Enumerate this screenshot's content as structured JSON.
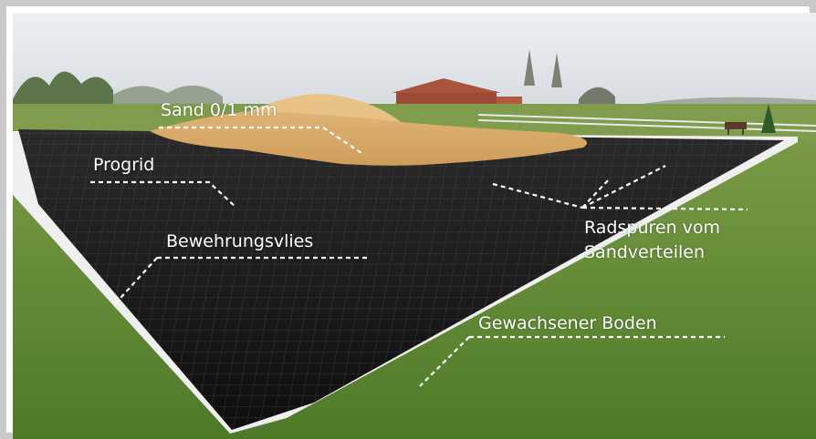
{
  "labels": {
    "sand": "Sand  0/1 mm",
    "progrid": "Progrid",
    "vlies": "Bewehrungsvlies",
    "radspuren_line1": "Radspuren vom",
    "radspuren_line2": "Sandverteilen",
    "boden": "Gewachsener Boden"
  },
  "colors": {
    "sky": "#dfe3e8",
    "grass": "#5b8a2e",
    "grid": "#141414",
    "sand": "#d9ab6a",
    "annotation": "#ffffff",
    "border": "#c9c9c9"
  }
}
